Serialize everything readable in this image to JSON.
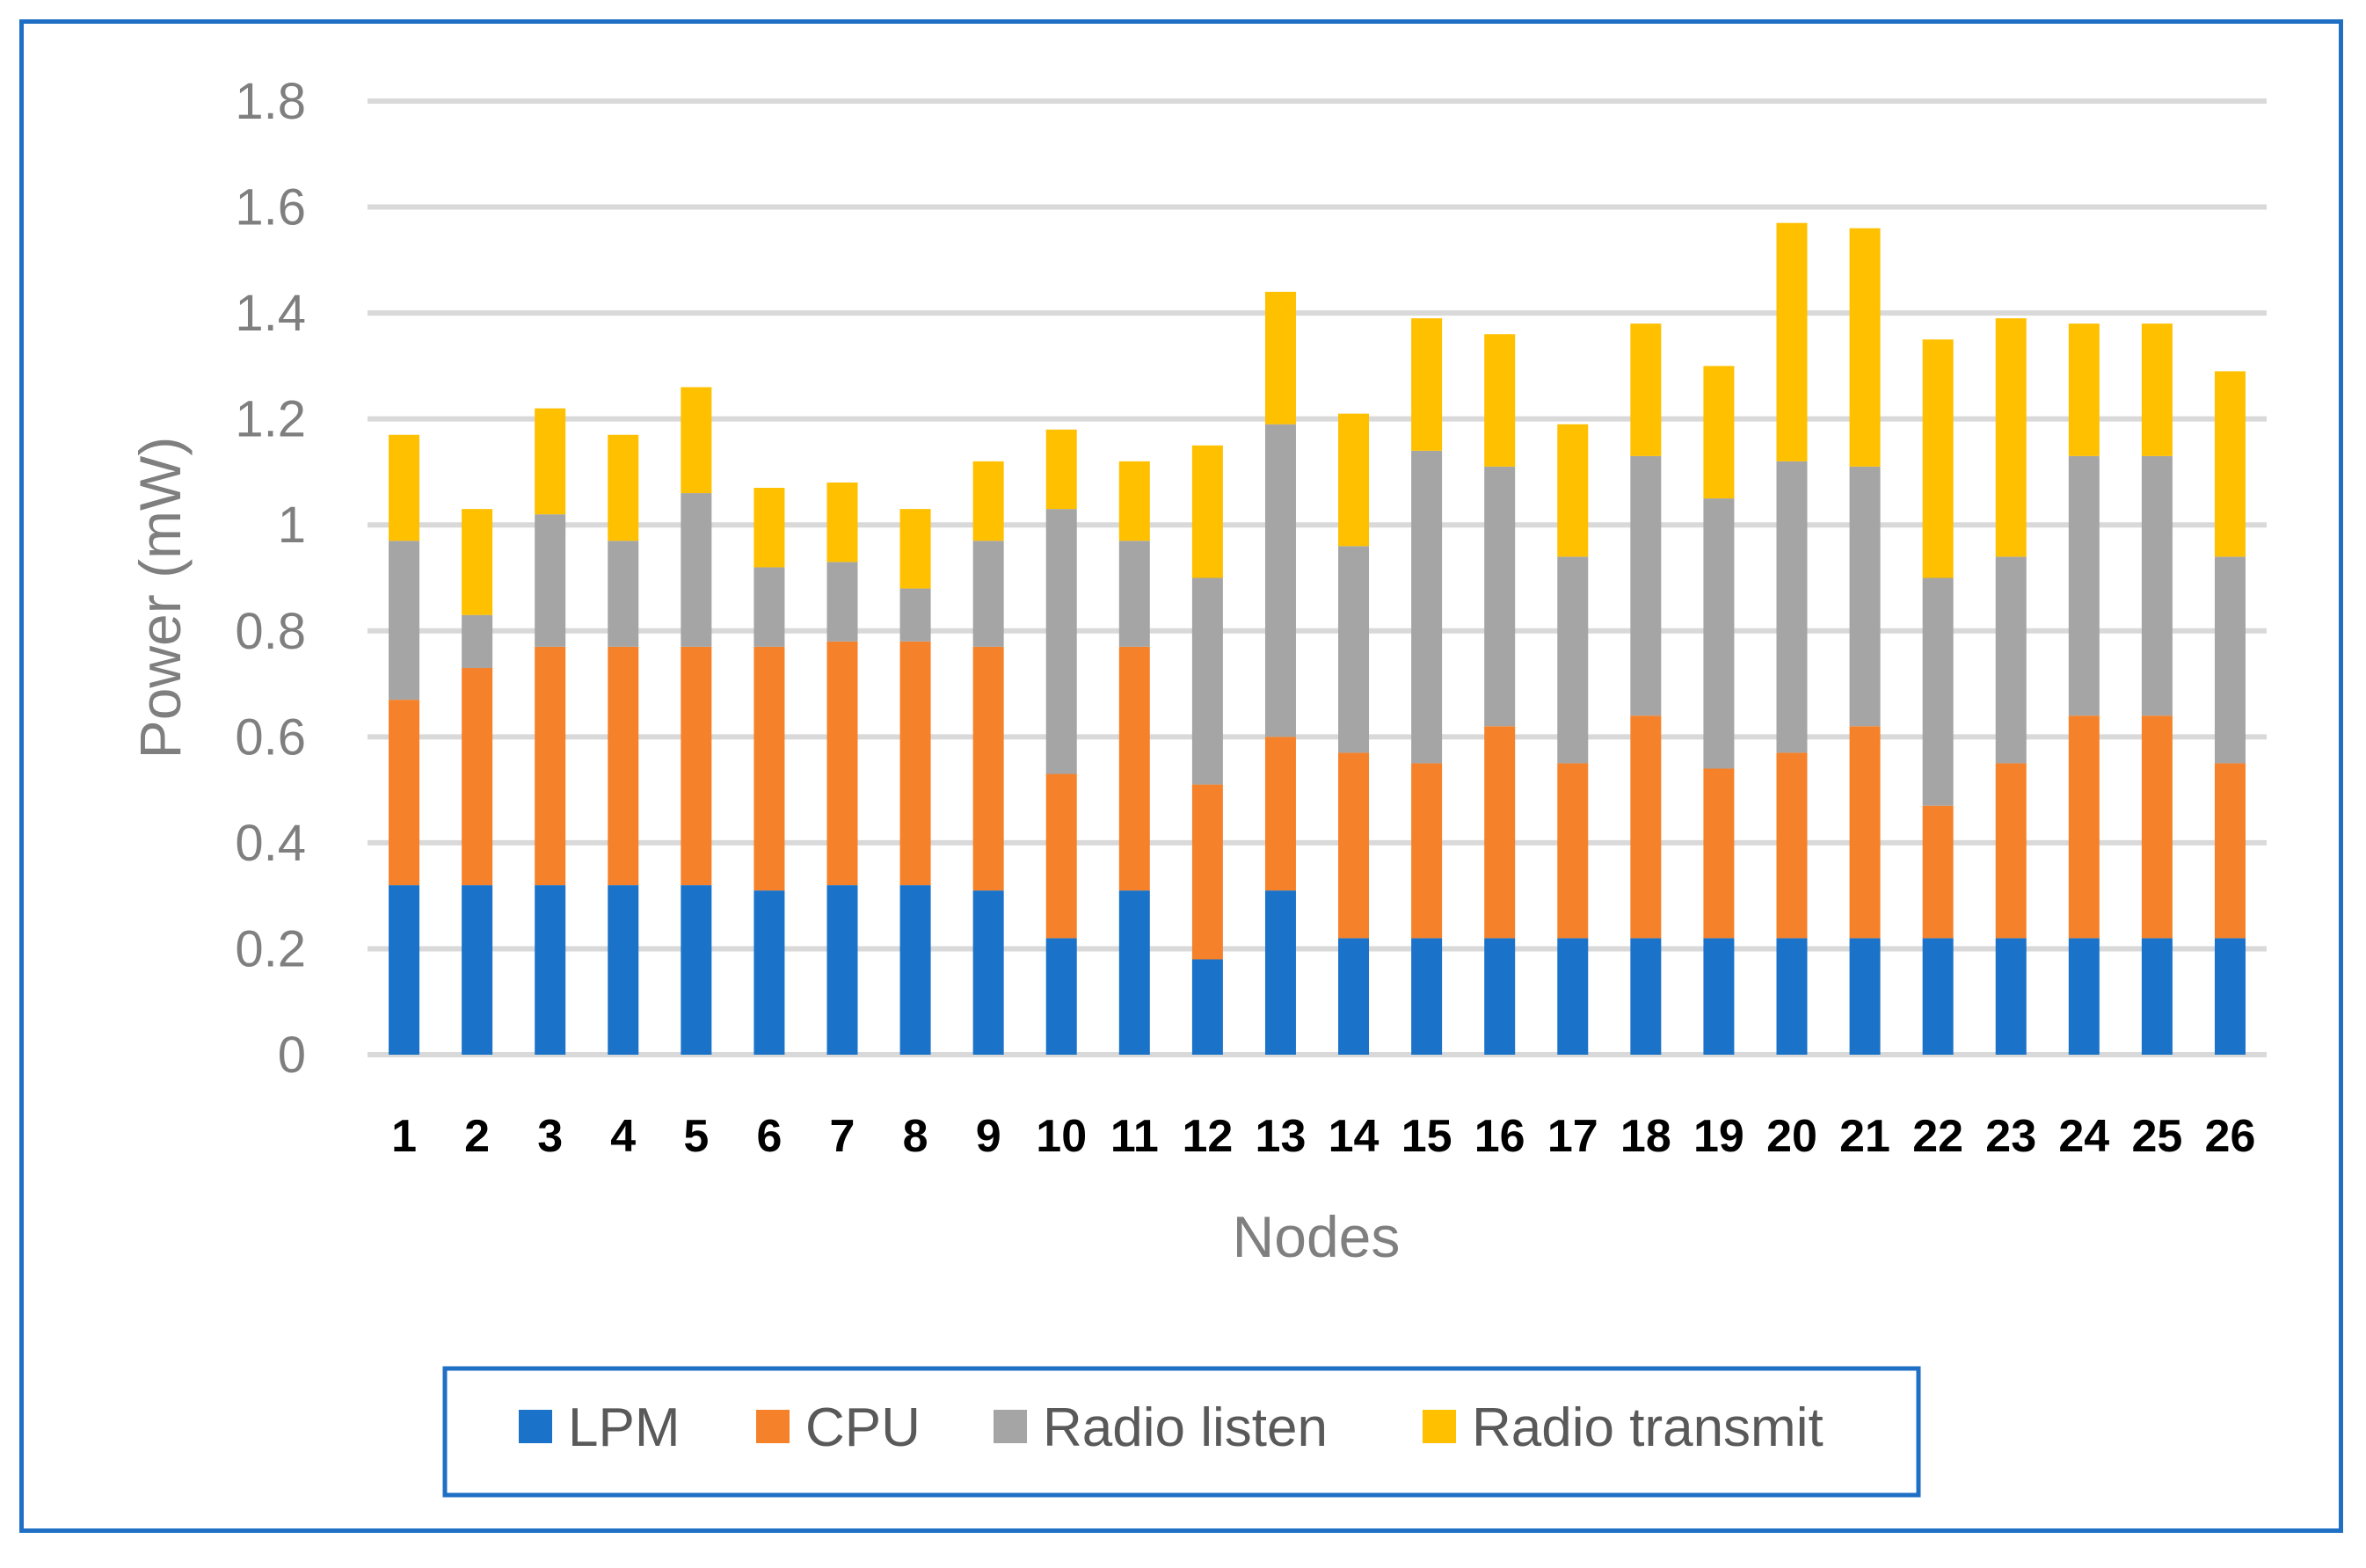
{
  "chart_data": {
    "type": "bar",
    "stacked": true,
    "title": "",
    "xlabel": "Nodes",
    "ylabel": "Power (mW)",
    "ylim": [
      0,
      1.8
    ],
    "yticks": [
      "0",
      "0.2",
      "0.4",
      "0.6",
      "0.8",
      "1",
      "1.2",
      "1.4",
      "1.6",
      "1.8"
    ],
    "ytick_values": [
      0,
      0.2,
      0.4,
      0.6,
      0.8,
      1.0,
      1.2,
      1.4,
      1.6,
      1.8
    ],
    "grid": true,
    "legend_position": "bottom",
    "categories": [
      "1",
      "2",
      "3",
      "4",
      "5",
      "6",
      "7",
      "8",
      "9",
      "10",
      "11",
      "12",
      "13",
      "14",
      "15",
      "16",
      "17",
      "18",
      "19",
      "20",
      "21",
      "22",
      "23",
      "24",
      "25",
      "26"
    ],
    "series": [
      {
        "name": "LPM",
        "color": "#1a73c8",
        "values": [
          0.32,
          0.32,
          0.32,
          0.32,
          0.32,
          0.31,
          0.32,
          0.32,
          0.31,
          0.22,
          0.31,
          0.18,
          0.31,
          0.22,
          0.22,
          0.22,
          0.22,
          0.22,
          0.22,
          0.22,
          0.22,
          0.22,
          0.22,
          0.22,
          0.22,
          0.22
        ]
      },
      {
        "name": "CPU",
        "color": "#f5822a",
        "values": [
          0.35,
          0.41,
          0.45,
          0.45,
          0.45,
          0.46,
          0.46,
          0.46,
          0.46,
          0.31,
          0.46,
          0.33,
          0.29,
          0.35,
          0.33,
          0.4,
          0.33,
          0.42,
          0.32,
          0.35,
          0.4,
          0.25,
          0.33,
          0.42,
          0.42,
          0.33
        ]
      },
      {
        "name": "Radio listen",
        "color": "#a5a5a5",
        "values": [
          0.3,
          0.1,
          0.25,
          0.2,
          0.29,
          0.15,
          0.15,
          0.1,
          0.2,
          0.5,
          0.2,
          0.39,
          0.59,
          0.39,
          0.59,
          0.49,
          0.39,
          0.49,
          0.51,
          0.55,
          0.49,
          0.43,
          0.39,
          0.49,
          0.49,
          0.39
        ]
      },
      {
        "name": "Radio transmit",
        "color": "#ffc000",
        "values": [
          0.2,
          0.2,
          0.2,
          0.2,
          0.2,
          0.15,
          0.15,
          0.15,
          0.15,
          0.15,
          0.15,
          0.25,
          0.25,
          0.25,
          0.25,
          0.25,
          0.25,
          0.25,
          0.25,
          0.45,
          0.45,
          0.45,
          0.45,
          0.25,
          0.25,
          0.35
        ]
      }
    ]
  }
}
